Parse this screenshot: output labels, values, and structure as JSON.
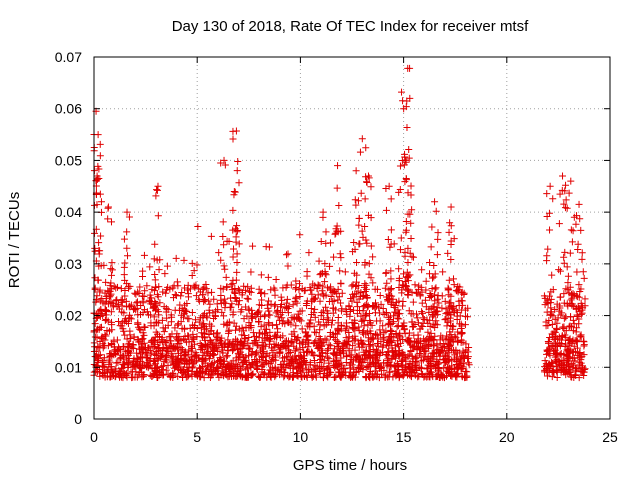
{
  "chart_data": {
    "type": "scatter",
    "title": "Day 130 of 2018, Rate Of TEC Index for receiver mtsf",
    "xlabel": "GPS time / hours",
    "ylabel": "ROTI / TECUs",
    "xlim": [
      0,
      25
    ],
    "ylim": [
      0,
      0.07
    ],
    "xticks": [
      0,
      5,
      10,
      15,
      20,
      25
    ],
    "xtick_labels": [
      "0",
      "5",
      "10",
      "15",
      "20",
      "25"
    ],
    "yticks": [
      0,
      0.01,
      0.02,
      0.03,
      0.04,
      0.05,
      0.06,
      0.07
    ],
    "ytick_labels": [
      "0",
      "0.01",
      "0.02",
      "0.03",
      "0.04",
      "0.05",
      "0.06",
      "0.07"
    ],
    "grid": true,
    "marker": "+",
    "color": "#e00000",
    "data_gap_hours": [
      18.3,
      21.7
    ],
    "series": [
      {
        "name": "ROTI",
        "segments": [
          {
            "x_start": 0.0,
            "x_end": 18.2,
            "base_range": [
              0.008,
              0.026
            ]
          },
          {
            "x_start": 21.8,
            "x_end": 23.8,
            "base_range": [
              0.009,
              0.024
            ]
          }
        ],
        "peaks": [
          {
            "x": 0.1,
            "y": 0.0595
          },
          {
            "x": 0.2,
            "y": 0.055
          },
          {
            "x": 0.15,
            "y": 0.047
          },
          {
            "x": 0.7,
            "y": 0.041
          },
          {
            "x": 1.6,
            "y": 0.04
          },
          {
            "x": 3.1,
            "y": 0.045
          },
          {
            "x": 6.3,
            "y": 0.05
          },
          {
            "x": 6.9,
            "y": 0.0557
          },
          {
            "x": 6.8,
            "y": 0.044
          },
          {
            "x": 11.1,
            "y": 0.04
          },
          {
            "x": 11.8,
            "y": 0.049
          },
          {
            "x": 12.7,
            "y": 0.048
          },
          {
            "x": 13.0,
            "y": 0.0542
          },
          {
            "x": 13.3,
            "y": 0.047
          },
          {
            "x": 14.3,
            "y": 0.045
          },
          {
            "x": 14.9,
            "y": 0.0632
          },
          {
            "x": 15.2,
            "y": 0.0678
          },
          {
            "x": 15.3,
            "y": 0.062
          },
          {
            "x": 15.1,
            "y": 0.05
          },
          {
            "x": 16.5,
            "y": 0.042
          },
          {
            "x": 17.3,
            "y": 0.041
          },
          {
            "x": 22.1,
            "y": 0.045
          },
          {
            "x": 22.7,
            "y": 0.047
          },
          {
            "x": 23.1,
            "y": 0.046
          },
          {
            "x": 23.5,
            "y": 0.0415
          }
        ]
      }
    ]
  }
}
